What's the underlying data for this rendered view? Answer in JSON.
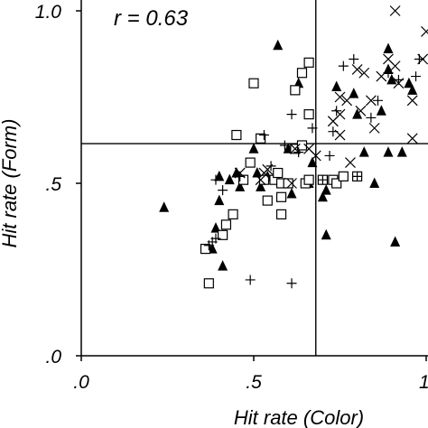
{
  "chart_data": {
    "type": "scatter",
    "title": "",
    "annotation": "r = 0.63",
    "xlabel": "Hit rate (Color)",
    "ylabel": "Hit rate (Form)",
    "xlim": [
      0.0,
      1.0
    ],
    "ylim": [
      0.0,
      1.0
    ],
    "x_ticks": [
      ".0",
      ".5",
      "1"
    ],
    "y_ticks": [
      ".0",
      ".5",
      "1.0"
    ],
    "grid": false,
    "reference_lines": {
      "x": 0.68,
      "y": 0.615
    },
    "series": [
      {
        "marker": "filled-triangle",
        "points": [
          [
            0.24,
            0.43
          ],
          [
            0.38,
            0.31
          ],
          [
            0.39,
            0.37
          ],
          [
            0.4,
            0.45
          ],
          [
            0.4,
            0.52
          ],
          [
            0.41,
            0.26
          ],
          [
            0.43,
            0.51
          ],
          [
            0.45,
            0.53
          ],
          [
            0.46,
            0.49
          ],
          [
            0.5,
            0.6
          ],
          [
            0.51,
            0.53
          ],
          [
            0.52,
            0.49
          ],
          [
            0.54,
            0.52
          ],
          [
            0.59,
            0.5
          ],
          [
            0.61,
            0.47
          ],
          [
            0.57,
            0.9
          ],
          [
            0.6,
            0.6
          ],
          [
            0.63,
            0.79
          ],
          [
            0.66,
            0.5
          ],
          [
            0.67,
            0.56
          ],
          [
            0.7,
            0.46
          ],
          [
            0.71,
            0.48
          ],
          [
            0.71,
            0.35
          ],
          [
            0.74,
            0.78
          ],
          [
            0.79,
            0.76
          ],
          [
            0.8,
            0.7
          ],
          [
            0.82,
            0.59
          ],
          [
            0.85,
            0.5
          ],
          [
            0.87,
            0.71
          ],
          [
            0.89,
            0.83
          ],
          [
            0.89,
            0.59
          ],
          [
            0.89,
            0.89
          ],
          [
            0.9,
            0.8
          ],
          [
            0.91,
            0.33
          ],
          [
            0.93,
            0.59
          ],
          [
            0.95,
            0.79
          ],
          [
            0.96,
            0.77
          ]
        ]
      },
      {
        "marker": "open-square",
        "points": [
          [
            0.36,
            0.31
          ],
          [
            0.37,
            0.21
          ],
          [
            0.41,
            0.35
          ],
          [
            0.42,
            0.38
          ],
          [
            0.44,
            0.41
          ],
          [
            0.45,
            0.64
          ],
          [
            0.47,
            0.51
          ],
          [
            0.49,
            0.56
          ],
          [
            0.52,
            0.63
          ],
          [
            0.5,
            0.79
          ],
          [
            0.53,
            0.51
          ],
          [
            0.54,
            0.45
          ],
          [
            0.56,
            0.51
          ],
          [
            0.57,
            0.53
          ],
          [
            0.58,
            0.41
          ],
          [
            0.58,
            0.46
          ],
          [
            0.58,
            0.5
          ],
          [
            0.6,
            0.5
          ],
          [
            0.62,
            0.6
          ],
          [
            0.62,
            0.77
          ],
          [
            0.64,
            0.82
          ],
          [
            0.64,
            0.61
          ],
          [
            0.65,
            0.5
          ],
          [
            0.66,
            0.51
          ],
          [
            0.7,
            0.51
          ],
          [
            0.73,
            0.51
          ],
          [
            0.74,
            0.5
          ],
          [
            0.76,
            0.52
          ],
          [
            0.8,
            0.52
          ],
          [
            0.66,
            0.85
          ],
          [
            0.66,
            0.7
          ]
        ]
      },
      {
        "marker": "plus",
        "points": [
          [
            0.37,
            0.32
          ],
          [
            0.38,
            0.33
          ],
          [
            0.39,
            0.34
          ],
          [
            0.39,
            0.51
          ],
          [
            0.41,
            0.48
          ],
          [
            0.46,
            0.52
          ],
          [
            0.49,
            0.22
          ],
          [
            0.53,
            0.64
          ],
          [
            0.55,
            0.55
          ],
          [
            0.59,
            0.61
          ],
          [
            0.61,
            0.7
          ],
          [
            0.61,
            0.21
          ],
          [
            0.63,
            0.59
          ],
          [
            0.67,
            0.66
          ],
          [
            0.7,
            0.51
          ],
          [
            0.72,
            0.58
          ],
          [
            0.73,
            0.65
          ],
          [
            0.74,
            0.71
          ],
          [
            0.76,
            0.84
          ],
          [
            0.79,
            0.86
          ],
          [
            0.8,
            0.52
          ],
          [
            0.84,
            0.69
          ],
          [
            0.86,
            0.74
          ],
          [
            0.89,
            0.82
          ],
          [
            0.92,
            0.8
          ],
          [
            0.97,
            0.81
          ],
          [
            0.98,
            0.86
          ]
        ]
      },
      {
        "marker": "cross",
        "points": [
          [
            0.46,
            0.53
          ],
          [
            0.62,
            0.6
          ],
          [
            0.66,
            0.6
          ],
          [
            0.68,
            0.58
          ],
          [
            0.73,
            0.68
          ],
          [
            0.73,
            0.68
          ],
          [
            0.75,
            0.64
          ],
          [
            0.75,
            0.7
          ],
          [
            0.75,
            0.75
          ],
          [
            0.77,
            0.74
          ],
          [
            0.78,
            0.56
          ],
          [
            0.8,
            0.83
          ],
          [
            0.81,
            0.71
          ],
          [
            0.82,
            0.82
          ],
          [
            0.84,
            0.74
          ],
          [
            0.85,
            0.66
          ],
          [
            0.87,
            0.81
          ],
          [
            0.89,
            0.86
          ],
          [
            0.91,
            0.84
          ],
          [
            0.91,
            1.0
          ],
          [
            0.92,
            0.79
          ],
          [
            0.96,
            0.63
          ],
          [
            0.96,
            0.74
          ],
          [
            0.99,
            0.86
          ],
          [
            1.0,
            0.94
          ],
          [
            0.52,
            0.51
          ],
          [
            0.53,
            0.53
          ],
          [
            0.54,
            0.54
          ],
          [
            0.61,
            0.5
          ]
        ]
      }
    ]
  }
}
